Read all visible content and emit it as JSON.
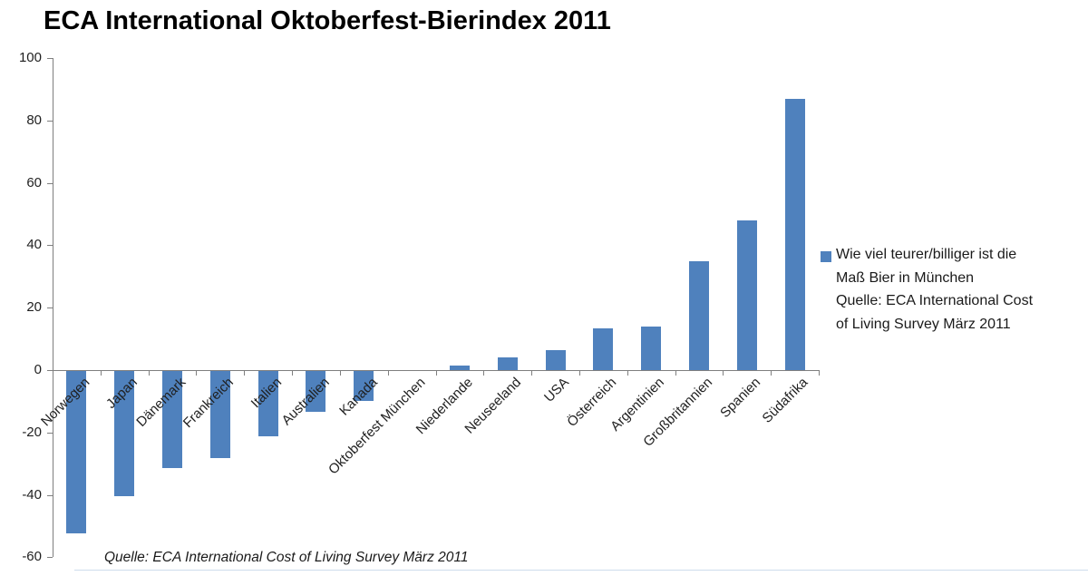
{
  "chart_data": {
    "type": "bar",
    "title": "ECA International Oktoberfest-Bierindex 2011",
    "categories": [
      "Norwegen",
      "Japan",
      "Dänemark",
      "Frankreich",
      "Italien",
      "Australien",
      "Kanada",
      "Oktoberfest München",
      "Niederlande",
      "Neuseeland",
      "USA",
      "Österreich",
      "Argentinien",
      "Großbritannien",
      "Spanien",
      "Südafrika"
    ],
    "values": [
      -52,
      -40,
      -31,
      -28,
      -21,
      -13,
      -9.5,
      0,
      1.5,
      4,
      6.5,
      13.5,
      14,
      35,
      48,
      87
    ],
    "series_name": "Wie viel teurer/billiger ist die Maß Bier in München Quelle: ECA International Cost of Living Survey März 2011",
    "legend_lines": [
      "Wie viel teurer/billiger ist die",
      "Maß Bier in München",
      "Quelle: ECA International Cost",
      "of Living Survey März 2011"
    ],
    "legend_position": "right",
    "source_note": "Quelle: ECA International Cost of Living Survey März 2011",
    "xlabel": "",
    "ylabel": "",
    "ylim": [
      -60,
      100
    ],
    "ytick_step": 20,
    "yticks": [
      -60,
      -40,
      -20,
      0,
      20,
      40,
      60,
      80,
      100
    ],
    "grid": false,
    "bar_color": "#4F81BD",
    "axis_color": "#7f7f7f",
    "divider_color": "#b9cde4"
  }
}
